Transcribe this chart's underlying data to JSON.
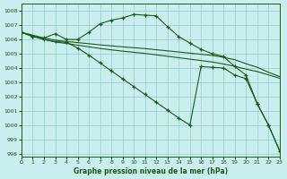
{
  "xlabel": "Graphe pression niveau de la mer (hPa)",
  "bg_color": "#c8eeee",
  "grid_color": "#96cccc",
  "line_color": "#1a5c1a",
  "ylim": [
    997.8,
    1008.5
  ],
  "xlim": [
    0,
    23
  ],
  "yticks": [
    998,
    999,
    1000,
    1001,
    1002,
    1003,
    1004,
    1005,
    1006,
    1007,
    1008
  ],
  "xticks": [
    0,
    1,
    2,
    3,
    4,
    5,
    6,
    7,
    8,
    9,
    10,
    11,
    12,
    13,
    14,
    15,
    16,
    17,
    18,
    19,
    20,
    21,
    22,
    23
  ],
  "series": [
    {
      "x": [
        0,
        1,
        2,
        3,
        4,
        5,
        6,
        7,
        8,
        9,
        10,
        11,
        12,
        13,
        14,
        15,
        16,
        17,
        18,
        19,
        20,
        21,
        22,
        23
      ],
      "y": [
        1006.5,
        1006.2,
        1006.1,
        1006.4,
        1006.0,
        1006.0,
        1006.5,
        1007.1,
        1007.35,
        1007.5,
        1007.75,
        1007.7,
        1007.65,
        1006.9,
        1006.2,
        1005.75,
        1005.3,
        1005.0,
        1004.8,
        1004.1,
        1003.5,
        1001.5,
        1000.0,
        998.2
      ],
      "marker": true
    },
    {
      "x": [
        0,
        1,
        2,
        3,
        4,
        5,
        6,
        7,
        8,
        9,
        10,
        11,
        12,
        13,
        14,
        15,
        16,
        17,
        18,
        19,
        20,
        21,
        22,
        23
      ],
      "y": [
        1006.5,
        1006.3,
        1006.1,
        1005.95,
        1005.85,
        1005.78,
        1005.7,
        1005.62,
        1005.55,
        1005.48,
        1005.42,
        1005.36,
        1005.28,
        1005.2,
        1005.12,
        1005.04,
        1004.96,
        1004.88,
        1004.75,
        1004.58,
        1004.3,
        1004.05,
        1003.7,
        1003.4
      ],
      "marker": false
    },
    {
      "x": [
        0,
        1,
        2,
        3,
        4,
        5,
        6,
        7,
        8,
        9,
        10,
        11,
        12,
        13,
        14,
        15,
        16,
        17,
        18,
        19,
        20,
        21,
        22,
        23
      ],
      "y": [
        1006.5,
        1006.25,
        1006.0,
        1005.82,
        1005.72,
        1005.6,
        1005.48,
        1005.37,
        1005.27,
        1005.18,
        1005.1,
        1005.02,
        1004.92,
        1004.82,
        1004.72,
        1004.62,
        1004.52,
        1004.42,
        1004.28,
        1004.12,
        1003.92,
        1003.75,
        1003.52,
        1003.28
      ],
      "marker": false
    },
    {
      "x": [
        0,
        1,
        2,
        3,
        4,
        5,
        6,
        7,
        8,
        9,
        10,
        11,
        12,
        13,
        14,
        15,
        16,
        17,
        18,
        19,
        20,
        21,
        22,
        23
      ],
      "y": [
        1006.5,
        1006.2,
        1006.0,
        1005.85,
        1005.8,
        1005.4,
        1004.9,
        1004.35,
        1003.8,
        1003.25,
        1002.7,
        1002.15,
        1001.6,
        1001.05,
        1000.5,
        1000.0,
        1004.1,
        1004.05,
        1004.0,
        1003.5,
        1003.25,
        1001.5,
        1000.0,
        998.2
      ],
      "marker": true
    }
  ]
}
